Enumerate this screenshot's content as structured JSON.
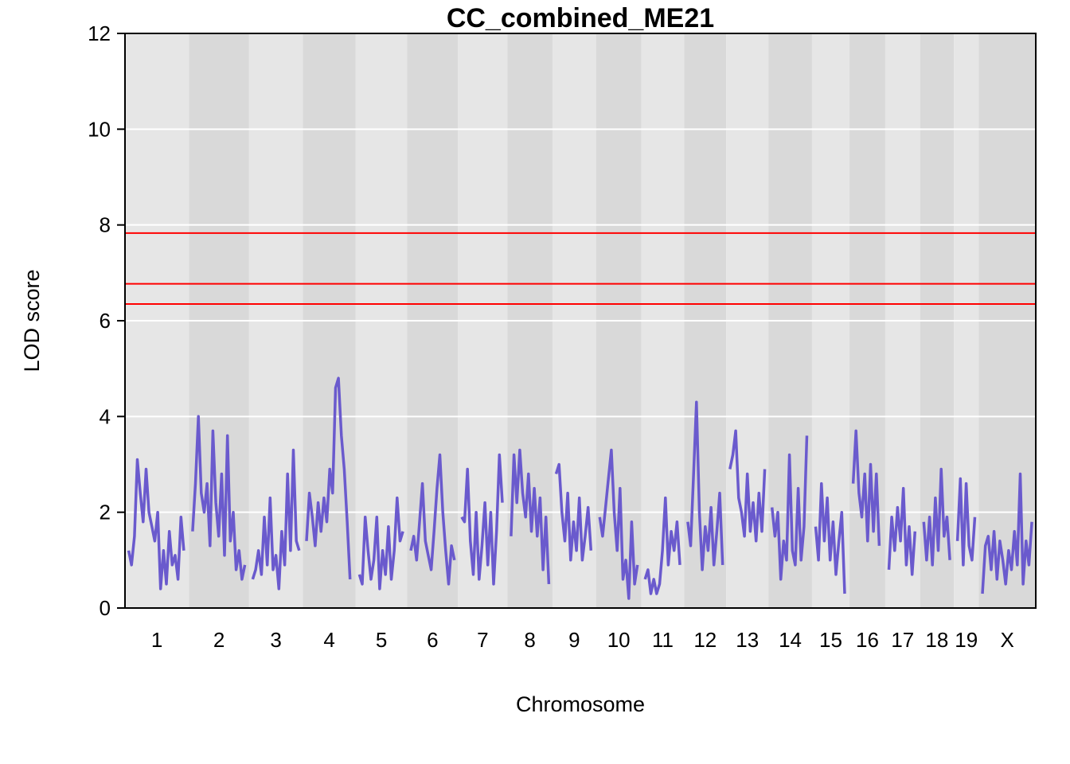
{
  "chart_data": {
    "type": "line",
    "title": "CC_combined_ME21",
    "xlabel": "Chromosome",
    "ylabel": "LOD score",
    "ylim": [
      0,
      12
    ],
    "y_ticks": [
      "0",
      "2",
      "4",
      "6",
      "8",
      "10",
      "12"
    ],
    "grid": true,
    "series_color": "#6A5ACD",
    "threshold_color": "#FF0000",
    "thresholds": [
      7.83,
      6.77,
      6.35
    ],
    "chromosomes": [
      {
        "label": "1",
        "length": 195
      },
      {
        "label": "2",
        "length": 182
      },
      {
        "label": "3",
        "length": 160
      },
      {
        "label": "4",
        "length": 157
      },
      {
        "label": "5",
        "length": 152
      },
      {
        "label": "6",
        "length": 150
      },
      {
        "label": "7",
        "length": 145
      },
      {
        "label": "8",
        "length": 130
      },
      {
        "label": "9",
        "length": 125
      },
      {
        "label": "10",
        "length": 131
      },
      {
        "label": "11",
        "length": 122
      },
      {
        "label": "12",
        "length": 120
      },
      {
        "label": "13",
        "length": 120
      },
      {
        "label": "14",
        "length": 125
      },
      {
        "label": "15",
        "length": 104
      },
      {
        "label": "16",
        "length": 98
      },
      {
        "label": "17",
        "length": 95
      },
      {
        "label": "18",
        "length": 91
      },
      {
        "label": "19",
        "length": 61
      },
      {
        "label": "X",
        "length": 171
      }
    ],
    "series": [
      {
        "chromosome": "1",
        "x": [
          0,
          10,
          20,
          30,
          40,
          50,
          60,
          70,
          80,
          90,
          100,
          110,
          120,
          130,
          140,
          150,
          160,
          170,
          180,
          190
        ],
        "y": [
          1.2,
          0.9,
          1.5,
          3.1,
          2.4,
          1.8,
          2.9,
          2.0,
          1.7,
          1.4,
          2.0,
          0.4,
          1.2,
          0.5,
          1.6,
          0.9,
          1.1,
          0.6,
          1.9,
          1.2
        ]
      },
      {
        "chromosome": "2",
        "x": [
          0,
          10,
          20,
          30,
          40,
          50,
          60,
          70,
          80,
          90,
          100,
          110,
          120,
          130,
          140,
          150,
          160,
          170,
          180
        ],
        "y": [
          1.6,
          2.6,
          4.0,
          2.4,
          2.0,
          2.6,
          1.3,
          3.7,
          2.2,
          1.5,
          2.8,
          1.1,
          3.6,
          1.4,
          2.0,
          0.8,
          1.2,
          0.6,
          0.9
        ]
      },
      {
        "chromosome": "3",
        "x": [
          0,
          10,
          20,
          30,
          40,
          50,
          60,
          70,
          80,
          90,
          100,
          110,
          120,
          130,
          140,
          150,
          160
        ],
        "y": [
          0.6,
          0.8,
          1.2,
          0.7,
          1.9,
          0.9,
          2.3,
          0.8,
          1.1,
          0.4,
          1.6,
          0.9,
          2.8,
          1.2,
          3.3,
          1.4,
          1.2
        ]
      },
      {
        "chromosome": "4",
        "x": [
          0,
          10,
          20,
          30,
          40,
          50,
          60,
          70,
          80,
          90,
          100,
          110,
          120,
          130,
          140,
          150
        ],
        "y": [
          1.4,
          2.4,
          1.9,
          1.3,
          2.2,
          1.6,
          2.3,
          1.8,
          2.9,
          2.4,
          4.6,
          4.8,
          3.6,
          2.9,
          1.8,
          0.6
        ]
      },
      {
        "chromosome": "5",
        "x": [
          0,
          10,
          20,
          30,
          40,
          50,
          60,
          70,
          80,
          90,
          100,
          110,
          120,
          130,
          140,
          150
        ],
        "y": [
          0.7,
          0.5,
          1.9,
          1.2,
          0.6,
          1.0,
          1.9,
          0.4,
          1.2,
          0.7,
          1.7,
          0.6,
          1.2,
          2.3,
          1.4,
          1.6
        ]
      },
      {
        "chromosome": "6",
        "x": [
          0,
          10,
          20,
          30,
          40,
          50,
          60,
          70,
          80,
          90,
          100,
          110,
          120,
          130,
          140,
          150
        ],
        "y": [
          1.2,
          1.5,
          1.0,
          1.8,
          2.6,
          1.4,
          1.1,
          0.8,
          1.6,
          2.5,
          3.2,
          2.0,
          1.2,
          0.5,
          1.3,
          1.0
        ]
      },
      {
        "chromosome": "7",
        "x": [
          0,
          10,
          20,
          30,
          40,
          50,
          60,
          70,
          80,
          90,
          100,
          110,
          120,
          130,
          140
        ],
        "y": [
          1.9,
          1.8,
          2.9,
          1.4,
          0.7,
          2.0,
          0.6,
          1.3,
          2.2,
          0.9,
          2.0,
          0.5,
          1.6,
          3.2,
          2.2
        ]
      },
      {
        "chromosome": "8",
        "x": [
          0,
          10,
          20,
          30,
          40,
          50,
          60,
          70,
          80,
          90,
          100,
          110,
          120,
          130
        ],
        "y": [
          1.5,
          3.2,
          2.2,
          3.3,
          2.4,
          1.9,
          2.8,
          1.6,
          2.5,
          1.5,
          2.3,
          0.8,
          1.9,
          0.5
        ]
      },
      {
        "chromosome": "9",
        "x": [
          0,
          10,
          20,
          30,
          40,
          50,
          60,
          70,
          80,
          90,
          100,
          110,
          120
        ],
        "y": [
          2.8,
          3.0,
          2.0,
          1.4,
          2.4,
          1.0,
          1.8,
          1.2,
          2.3,
          1.0,
          1.5,
          2.1,
          1.2
        ]
      },
      {
        "chromosome": "10",
        "x": [
          0,
          10,
          20,
          30,
          40,
          50,
          60,
          70,
          80,
          90,
          100,
          110,
          120,
          130
        ],
        "y": [
          1.9,
          1.5,
          2.1,
          2.7,
          3.3,
          2.0,
          1.2,
          2.5,
          0.6,
          1.0,
          0.2,
          1.8,
          0.5,
          0.9
        ]
      },
      {
        "chromosome": "11",
        "x": [
          0,
          10,
          20,
          30,
          40,
          50,
          60,
          70,
          80,
          90,
          100,
          110,
          120
        ],
        "y": [
          0.6,
          0.8,
          0.3,
          0.6,
          0.3,
          0.5,
          1.2,
          2.3,
          0.9,
          1.6,
          1.2,
          1.8,
          0.9
        ]
      },
      {
        "chromosome": "12",
        "x": [
          0,
          10,
          20,
          30,
          40,
          50,
          60,
          70,
          80,
          90,
          100,
          110,
          120
        ],
        "y": [
          1.8,
          1.3,
          2.8,
          4.3,
          2.0,
          0.8,
          1.7,
          1.2,
          2.1,
          0.9,
          1.6,
          2.4,
          0.9
        ]
      },
      {
        "chromosome": "13",
        "x": [
          0,
          10,
          20,
          30,
          40,
          50,
          60,
          70,
          80,
          90,
          100,
          110,
          120
        ],
        "y": [
          2.9,
          3.2,
          3.7,
          2.3,
          2.0,
          1.5,
          2.8,
          1.6,
          2.2,
          1.4,
          2.4,
          1.6,
          2.9
        ]
      },
      {
        "chromosome": "14",
        "x": [
          0,
          10,
          20,
          30,
          40,
          50,
          60,
          70,
          80,
          90,
          100,
          110,
          120
        ],
        "y": [
          2.1,
          1.5,
          2.0,
          0.6,
          1.4,
          1.0,
          3.2,
          1.2,
          0.9,
          2.5,
          1.0,
          1.7,
          3.6
        ]
      },
      {
        "chromosome": "15",
        "x": [
          0,
          10,
          20,
          30,
          40,
          50,
          60,
          70,
          80,
          90,
          100
        ],
        "y": [
          1.7,
          1.0,
          2.6,
          1.4,
          2.3,
          1.0,
          1.8,
          0.7,
          1.4,
          2.0,
          0.3
        ]
      },
      {
        "chromosome": "16",
        "x": [
          0,
          10,
          20,
          30,
          40,
          50,
          60,
          70,
          80,
          90
        ],
        "y": [
          2.6,
          3.7,
          2.4,
          1.9,
          2.8,
          1.4,
          3.0,
          1.6,
          2.8,
          1.3
        ]
      },
      {
        "chromosome": "17",
        "x": [
          0,
          10,
          20,
          30,
          40,
          50,
          60,
          70,
          80,
          90
        ],
        "y": [
          0.8,
          1.9,
          1.2,
          2.1,
          1.4,
          2.5,
          0.9,
          1.7,
          0.7,
          1.6
        ]
      },
      {
        "chromosome": "18",
        "x": [
          0,
          10,
          20,
          30,
          40,
          50,
          60,
          70,
          80,
          90
        ],
        "y": [
          1.8,
          1.0,
          1.9,
          0.9,
          2.3,
          1.2,
          2.9,
          1.5,
          1.9,
          1.0
        ]
      },
      {
        "chromosome": "19",
        "x": [
          0,
          10,
          20,
          30,
          40,
          50,
          60
        ],
        "y": [
          1.4,
          2.7,
          0.9,
          2.6,
          1.3,
          1.0,
          1.9
        ]
      },
      {
        "chromosome": "X",
        "x": [
          0,
          10,
          20,
          30,
          40,
          50,
          60,
          70,
          80,
          90,
          100,
          110,
          120,
          130,
          140,
          150,
          160,
          170
        ],
        "y": [
          0.3,
          1.3,
          1.5,
          0.8,
          1.6,
          0.6,
          1.4,
          1.0,
          0.5,
          1.2,
          0.8,
          1.6,
          0.9,
          2.8,
          0.5,
          1.4,
          0.9,
          1.8
        ]
      }
    ]
  }
}
